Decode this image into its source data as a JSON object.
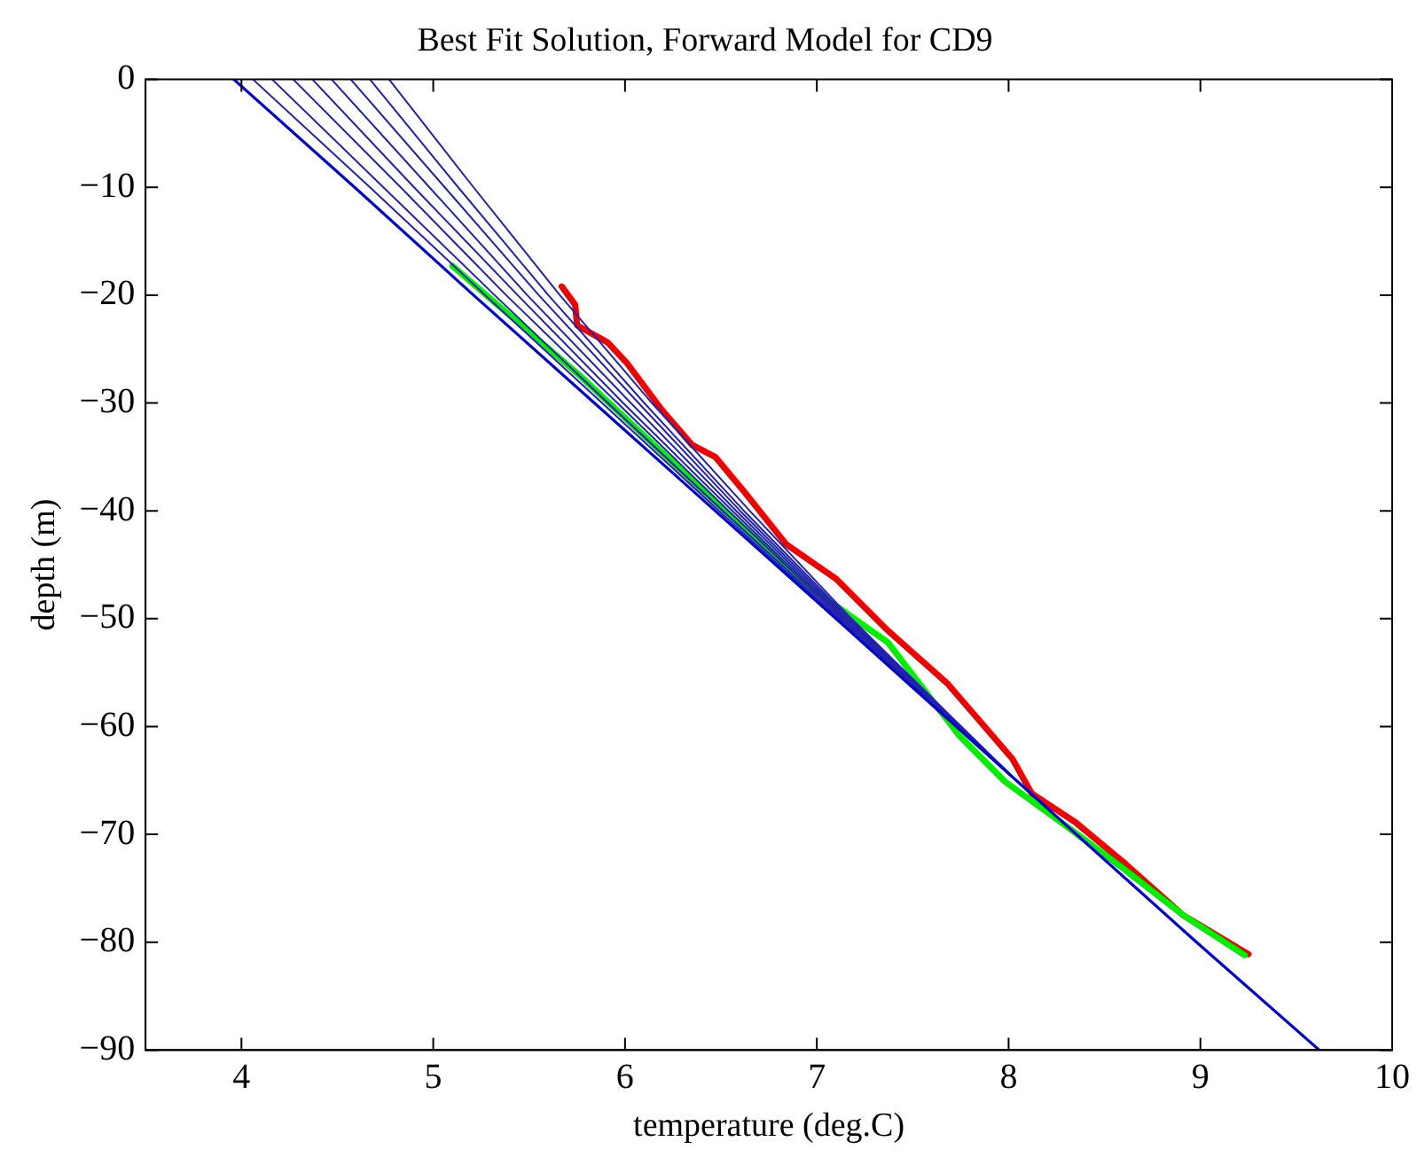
{
  "chart_data": {
    "type": "line",
    "title": "Best Fit Solution, Forward Model for CD9",
    "xlabel": "temperature (deg.C)",
    "ylabel": "depth (m)",
    "xlim": [
      3.5,
      10
    ],
    "xticks": [
      4,
      5,
      6,
      7,
      8,
      9,
      10
    ],
    "ylim": [
      -90,
      0
    ],
    "yticks": [
      -90,
      -80,
      -70,
      -60,
      -50,
      -40,
      -30,
      -20,
      -10,
      0
    ],
    "grid": false,
    "legend": false,
    "marker": "none",
    "line_style": "solid",
    "series": [
      {
        "color": "#0000cc",
        "x": [
          3.96,
          4.59,
          5.21,
          5.84,
          6.47,
          7.1,
          8.04,
          8.98,
          9.62
        ],
        "values": [
          0,
          -10,
          -20,
          -30,
          -40,
          -50,
          -65,
          -80,
          -90
        ]
      },
      {
        "color": "#2222aa",
        "x": [
          4.06,
          4.67,
          5.27,
          5.88,
          6.49,
          7.11,
          8.04
        ],
        "values": [
          0,
          -10,
          -20,
          -30,
          -40,
          -50,
          -65
        ]
      },
      {
        "color": "#2222aa",
        "x": [
          4.16,
          4.74,
          5.32,
          5.91,
          6.51,
          7.12,
          8.04
        ],
        "values": [
          0,
          -10,
          -20,
          -30,
          -40,
          -50,
          -65
        ]
      },
      {
        "color": "#2222aa",
        "x": [
          4.27,
          4.83,
          5.38,
          5.96,
          6.54,
          7.13,
          8.04
        ],
        "values": [
          0,
          -10,
          -20,
          -30,
          -40,
          -50,
          -65
        ]
      },
      {
        "color": "#2222aa",
        "x": [
          4.37,
          4.9,
          5.44,
          5.99,
          6.56,
          7.14,
          8.04
        ],
        "values": [
          0,
          -10,
          -20,
          -30,
          -40,
          -50,
          -65
        ]
      },
      {
        "color": "#2222aa",
        "x": [
          4.47,
          4.98,
          5.49,
          6.03,
          6.58,
          7.15,
          8.04
        ],
        "values": [
          0,
          -10,
          -20,
          -30,
          -40,
          -50,
          -65
        ]
      },
      {
        "color": "#2222aa",
        "x": [
          4.57,
          5.06,
          5.55,
          6.07,
          6.6,
          7.16,
          8.04
        ],
        "values": [
          0,
          -10,
          -20,
          -30,
          -40,
          -50,
          -65
        ]
      },
      {
        "color": "#2222aa",
        "x": [
          4.67,
          5.13,
          5.6,
          6.1,
          6.62,
          7.17,
          8.04
        ],
        "values": [
          0,
          -10,
          -20,
          -30,
          -40,
          -50,
          -65
        ]
      },
      {
        "color": "#2222aa",
        "x": [
          4.77,
          5.21,
          5.66,
          6.14,
          6.65,
          7.18,
          8.04
        ],
        "values": [
          0,
          -10,
          -20,
          -30,
          -40,
          -50,
          -65
        ]
      },
      {
        "color": "#00ee00",
        "x": [
          5.1,
          5.76,
          6.38,
          6.94,
          7.37,
          7.74,
          7.98,
          8.29,
          8.6,
          8.91,
          9.23
        ],
        "values": [
          -17.3,
          -27.4,
          -37.7,
          -46.8,
          -52.2,
          -60.8,
          -65.1,
          -69.1,
          -73.2,
          -77.5,
          -81.2
        ]
      },
      {
        "color": "#ee0000",
        "x": [
          5.67,
          5.74,
          5.75,
          5.85,
          5.91,
          6.01,
          6.19,
          6.35,
          6.47,
          6.62,
          6.84,
          7.1,
          7.37,
          7.68,
          8.02,
          8.12,
          8.35,
          8.6,
          8.91,
          9.25
        ],
        "values": [
          -19.2,
          -20.9,
          -22.8,
          -23.8,
          -24.4,
          -26.3,
          -30.6,
          -33.9,
          -35,
          -38.2,
          -43.1,
          -46.3,
          -51.1,
          -56,
          -63,
          -66.2,
          -68.9,
          -72.6,
          -77.5,
          -81.1
        ]
      }
    ]
  }
}
